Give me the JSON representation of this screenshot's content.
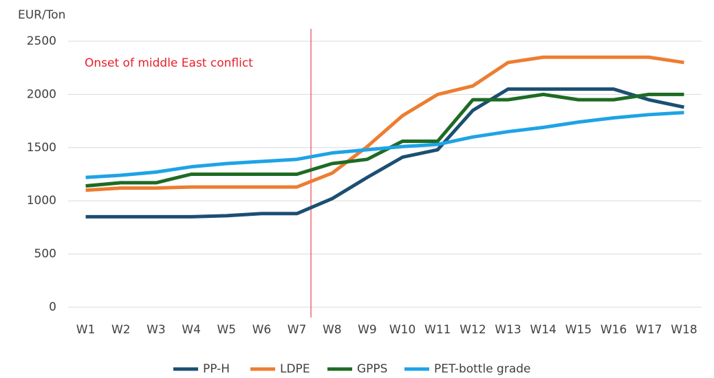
{
  "chart_data": {
    "type": "line",
    "y_axis_label": "EUR/Ton",
    "annotation": "Onset of middle East conflict",
    "categories": [
      "W1",
      "W2",
      "W3",
      "W4",
      "W5",
      "W6",
      "W7",
      "W8",
      "W9",
      "W10",
      "W11",
      "W12",
      "W13",
      "W14",
      "W15",
      "W16",
      "W17",
      "W18"
    ],
    "series": [
      {
        "name": "PP-H",
        "color": "#1b4f72",
        "values": [
          850,
          850,
          850,
          850,
          860,
          880,
          880,
          1020,
          1220,
          1410,
          1480,
          1850,
          2050,
          2050,
          2050,
          2050,
          1950,
          1880
        ]
      },
      {
        "name": "LDPE",
        "color": "#ed7d31",
        "values": [
          1100,
          1120,
          1120,
          1130,
          1130,
          1130,
          1130,
          1260,
          1510,
          1800,
          2000,
          2080,
          2300,
          2350,
          2350,
          2350,
          2350,
          2300
        ]
      },
      {
        "name": "GPPS",
        "color": "#1e6b24",
        "values": [
          1140,
          1170,
          1170,
          1250,
          1250,
          1250,
          1250,
          1350,
          1390,
          1560,
          1560,
          1950,
          1950,
          2000,
          1950,
          1950,
          2000,
          2000
        ]
      },
      {
        "name": "PET-bottle grade",
        "color": "#1ea3e6",
        "values": [
          1220,
          1240,
          1270,
          1320,
          1350,
          1370,
          1390,
          1450,
          1480,
          1510,
          1530,
          1600,
          1650,
          1690,
          1740,
          1780,
          1810,
          1830
        ]
      }
    ],
    "ylim": [
      0,
      2500
    ],
    "yticks": [
      0,
      500,
      1000,
      1500,
      2000,
      2500
    ],
    "grid": true,
    "legend": "bottom",
    "annotation_color": "#e8202a"
  }
}
